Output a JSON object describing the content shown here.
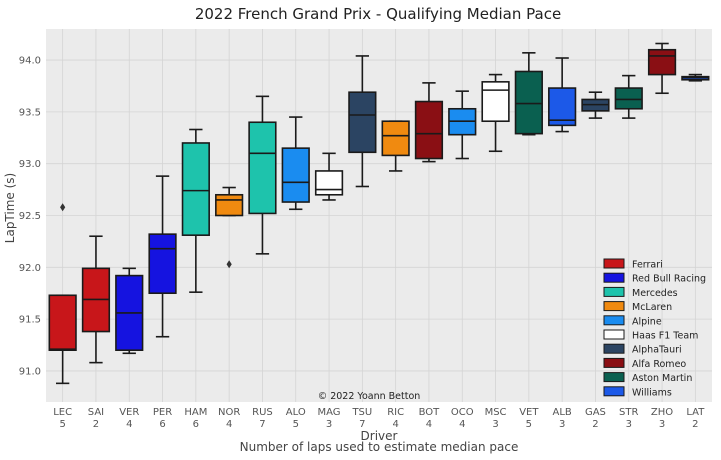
{
  "chart_data": {
    "type": "box",
    "title": "2022 French Grand Prix - Qualifying Median Pace",
    "ylabel": "LapTime (s)",
    "xlabel": "Driver",
    "xlabel2": "Number of laps used to estimate median pace",
    "copyright": "© 2022 Yoann Betton",
    "ylim": [
      90.7,
      94.3
    ],
    "yticks": [
      "91.0",
      "91.5",
      "92.0",
      "92.5",
      "93.0",
      "93.5",
      "94.0"
    ],
    "grid": true,
    "legend_position": "bottom-right",
    "teams": [
      {
        "name": "Ferrari",
        "color": "#c8161a"
      },
      {
        "name": "Red Bull Racing",
        "color": "#1513e0"
      },
      {
        "name": "Mercedes",
        "color": "#1ec3ac"
      },
      {
        "name": "McLaren",
        "color": "#f08a10"
      },
      {
        "name": "Alpine",
        "color": "#1a8cf0"
      },
      {
        "name": "Haas F1 Team",
        "color": "#ffffff"
      },
      {
        "name": "AlphaTauri",
        "color": "#2b4462"
      },
      {
        "name": "Alfa Romeo",
        "color": "#8a0f14"
      },
      {
        "name": "Aston Martin",
        "color": "#0a6050"
      },
      {
        "name": "Williams",
        "color": "#1c59e8"
      }
    ],
    "drivers": [
      {
        "code": "LEC",
        "laps": "5",
        "team": 0,
        "whislo": 90.88,
        "q1": 91.2,
        "med": 91.21,
        "q3": 91.73,
        "whishi": 91.73,
        "fliers": [
          92.58
        ]
      },
      {
        "code": "SAI",
        "laps": "2",
        "team": 0,
        "whislo": 91.08,
        "q1": 91.38,
        "med": 91.69,
        "q3": 91.99,
        "whishi": 92.3,
        "fliers": []
      },
      {
        "code": "VER",
        "laps": "4",
        "team": 1,
        "whislo": 91.17,
        "q1": 91.2,
        "med": 91.56,
        "q3": 91.92,
        "whishi": 91.99,
        "fliers": []
      },
      {
        "code": "PER",
        "laps": "6",
        "team": 1,
        "whislo": 91.33,
        "q1": 91.75,
        "med": 92.18,
        "q3": 92.32,
        "whishi": 92.88,
        "fliers": []
      },
      {
        "code": "HAM",
        "laps": "6",
        "team": 2,
        "whislo": 91.76,
        "q1": 92.31,
        "med": 92.74,
        "q3": 93.2,
        "whishi": 93.33,
        "fliers": []
      },
      {
        "code": "NOR",
        "laps": "4",
        "team": 3,
        "whislo": 92.5,
        "q1": 92.5,
        "med": 92.65,
        "q3": 92.7,
        "whishi": 92.77,
        "fliers": [
          92.03
        ]
      },
      {
        "code": "RUS",
        "laps": "7",
        "team": 2,
        "whislo": 92.13,
        "q1": 92.52,
        "med": 93.1,
        "q3": 93.4,
        "whishi": 93.65,
        "fliers": []
      },
      {
        "code": "ALO",
        "laps": "5",
        "team": 4,
        "whislo": 92.56,
        "q1": 92.63,
        "med": 92.82,
        "q3": 93.15,
        "whishi": 93.45,
        "fliers": []
      },
      {
        "code": "MAG",
        "laps": "3",
        "team": 5,
        "whislo": 92.65,
        "q1": 92.7,
        "med": 92.75,
        "q3": 92.93,
        "whishi": 93.1,
        "fliers": []
      },
      {
        "code": "TSU",
        "laps": "7",
        "team": 6,
        "whislo": 92.78,
        "q1": 93.11,
        "med": 93.47,
        "q3": 93.69,
        "whishi": 94.04,
        "fliers": []
      },
      {
        "code": "RIC",
        "laps": "4",
        "team": 3,
        "whislo": 92.93,
        "q1": 93.08,
        "med": 93.27,
        "q3": 93.41,
        "whishi": 93.41,
        "fliers": []
      },
      {
        "code": "BOT",
        "laps": "4",
        "team": 7,
        "whislo": 93.02,
        "q1": 93.05,
        "med": 93.29,
        "q3": 93.6,
        "whishi": 93.78,
        "fliers": []
      },
      {
        "code": "OCO",
        "laps": "4",
        "team": 4,
        "whislo": 93.05,
        "q1": 93.28,
        "med": 93.41,
        "q3": 93.53,
        "whishi": 93.7,
        "fliers": []
      },
      {
        "code": "MSC",
        "laps": "3",
        "team": 5,
        "whislo": 93.12,
        "q1": 93.41,
        "med": 93.71,
        "q3": 93.79,
        "whishi": 93.86,
        "fliers": []
      },
      {
        "code": "VET",
        "laps": "5",
        "team": 8,
        "whislo": 93.28,
        "q1": 93.29,
        "med": 93.58,
        "q3": 93.89,
        "whishi": 94.07,
        "fliers": []
      },
      {
        "code": "ALB",
        "laps": "3",
        "team": 9,
        "whislo": 93.31,
        "q1": 93.37,
        "med": 93.42,
        "q3": 93.73,
        "whishi": 94.02,
        "fliers": []
      },
      {
        "code": "GAS",
        "laps": "2",
        "team": 6,
        "whislo": 93.44,
        "q1": 93.51,
        "med": 93.57,
        "q3": 93.62,
        "whishi": 93.69,
        "fliers": []
      },
      {
        "code": "STR",
        "laps": "3",
        "team": 8,
        "whislo": 93.44,
        "q1": 93.53,
        "med": 93.62,
        "q3": 93.73,
        "whishi": 93.85,
        "fliers": []
      },
      {
        "code": "ZHO",
        "laps": "3",
        "team": 7,
        "whislo": 93.68,
        "q1": 93.86,
        "med": 94.04,
        "q3": 94.1,
        "whishi": 94.16,
        "fliers": []
      },
      {
        "code": "LAT",
        "laps": "2",
        "team": 9,
        "whislo": 93.8,
        "q1": 93.81,
        "med": 93.83,
        "q3": 93.84,
        "whishi": 93.86,
        "fliers": []
      }
    ]
  }
}
